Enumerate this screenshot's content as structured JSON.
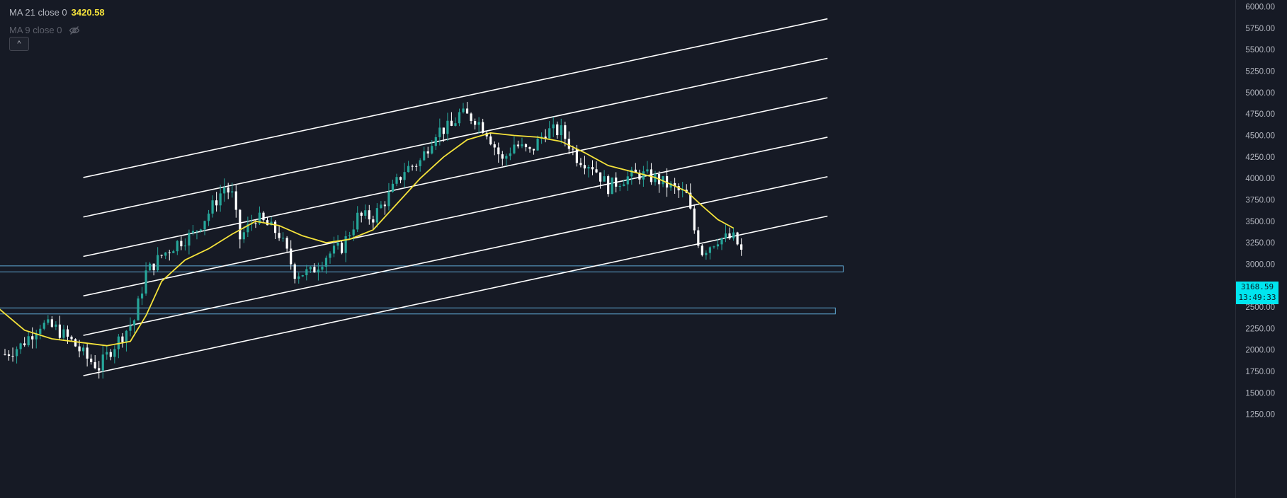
{
  "legend": {
    "ma21_label": "MA 21 close 0",
    "ma21_value": "3420.58",
    "ma21_color": "#f5e33b",
    "ma9_label": "MA 9 close 0",
    "collapse_label": "^",
    "eye_icon": "eye-crossed-icon"
  },
  "price_tag": {
    "price": "3168.59",
    "countdown": "13:49:33",
    "color": "#00e5ef"
  },
  "colors": {
    "background": "#161a25",
    "up": "#26a69a",
    "down": "#ffffff",
    "ma": "#f5e33b",
    "channel": "#ffffff",
    "zone": "#5fa8d3"
  },
  "chart_data": {
    "type": "candlestick",
    "y_axis": {
      "min": 1000,
      "max": 6000,
      "ticks": [
        "6000.00",
        "5750.00",
        "5500.00",
        "5250.00",
        "5000.00",
        "4750.00",
        "4500.00",
        "4250.00",
        "4000.00",
        "3750.00",
        "3500.00",
        "3250.00",
        "3000.00",
        "2750.00",
        "2500.00",
        "2250.00",
        "2000.00",
        "1750.00",
        "1500.00",
        "1250.00"
      ],
      "position": "right"
    },
    "x_index_range": [
      0,
      205
    ],
    "price_path": [
      [
        0,
        1950
      ],
      [
        4,
        2050
      ],
      [
        9,
        2300
      ],
      [
        13,
        2250
      ],
      [
        17,
        2100
      ],
      [
        21,
        1900
      ],
      [
        24,
        1800
      ],
      [
        27,
        2000
      ],
      [
        33,
        2350
      ],
      [
        36,
        2900
      ],
      [
        40,
        3100
      ],
      [
        44,
        3250
      ],
      [
        48,
        3350
      ],
      [
        52,
        3600
      ],
      [
        56,
        3900
      ],
      [
        58,
        3800
      ],
      [
        60,
        3300
      ],
      [
        64,
        3550
      ],
      [
        70,
        3350
      ],
      [
        74,
        2900
      ],
      [
        78,
        2900
      ],
      [
        82,
        3100
      ],
      [
        86,
        3200
      ],
      [
        90,
        3550
      ],
      [
        94,
        3550
      ],
      [
        98,
        3800
      ],
      [
        102,
        4100
      ],
      [
        106,
        4200
      ],
      [
        110,
        4550
      ],
      [
        114,
        4600
      ],
      [
        116,
        4750
      ],
      [
        120,
        4700
      ],
      [
        123,
        4550
      ],
      [
        127,
        4200
      ],
      [
        130,
        4400
      ],
      [
        134,
        4300
      ],
      [
        138,
        4550
      ],
      [
        142,
        4550
      ],
      [
        146,
        4250
      ],
      [
        150,
        4150
      ],
      [
        154,
        3900
      ],
      [
        158,
        4000
      ],
      [
        162,
        4050
      ],
      [
        166,
        4000
      ],
      [
        170,
        3900
      ],
      [
        174,
        3800
      ],
      [
        176,
        3400
      ],
      [
        178,
        3150
      ],
      [
        182,
        3300
      ],
      [
        186,
        3300
      ],
      [
        188,
        3168
      ]
    ],
    "ma21": {
      "name": "MA 21 close 0",
      "points": [
        [
          -2,
          2500
        ],
        [
          5,
          2230
        ],
        [
          12,
          2130
        ],
        [
          19,
          2090
        ],
        [
          26,
          2050
        ],
        [
          32,
          2100
        ],
        [
          36,
          2400
        ],
        [
          40,
          2800
        ],
        [
          46,
          3050
        ],
        [
          52,
          3180
        ],
        [
          58,
          3350
        ],
        [
          64,
          3500
        ],
        [
          70,
          3450
        ],
        [
          76,
          3330
        ],
        [
          82,
          3250
        ],
        [
          88,
          3290
        ],
        [
          94,
          3400
        ],
        [
          100,
          3700
        ],
        [
          106,
          4000
        ],
        [
          112,
          4250
        ],
        [
          118,
          4450
        ],
        [
          124,
          4530
        ],
        [
          130,
          4500
        ],
        [
          136,
          4480
        ],
        [
          142,
          4430
        ],
        [
          148,
          4300
        ],
        [
          154,
          4150
        ],
        [
          160,
          4080
        ],
        [
          166,
          4010
        ],
        [
          170,
          3930
        ],
        [
          174,
          3850
        ],
        [
          178,
          3680
        ],
        [
          182,
          3520
        ],
        [
          186,
          3420
        ]
      ]
    },
    "channel_lines": [
      {
        "x0": 20,
        "y0": 1700,
        "x1": 210,
        "y1": 3560
      },
      {
        "x0": 20,
        "y0": 2170,
        "x1": 210,
        "y1": 4020
      },
      {
        "x0": 20,
        "y0": 2630,
        "x1": 210,
        "y1": 4480
      },
      {
        "x0": 20,
        "y0": 3090,
        "x1": 210,
        "y1": 4940
      },
      {
        "x0": 20,
        "y0": 3550,
        "x1": 210,
        "y1": 5400
      },
      {
        "x0": 20,
        "y0": 4010,
        "x1": 210,
        "y1": 5860
      }
    ],
    "zones": [
      {
        "x0": -2,
        "x1": 214,
        "y_low": 2910,
        "y_high": 2980
      },
      {
        "x0": -2,
        "x1": 212,
        "y_low": 2420,
        "y_high": 2490
      }
    ],
    "last_price": 3168.59
  }
}
